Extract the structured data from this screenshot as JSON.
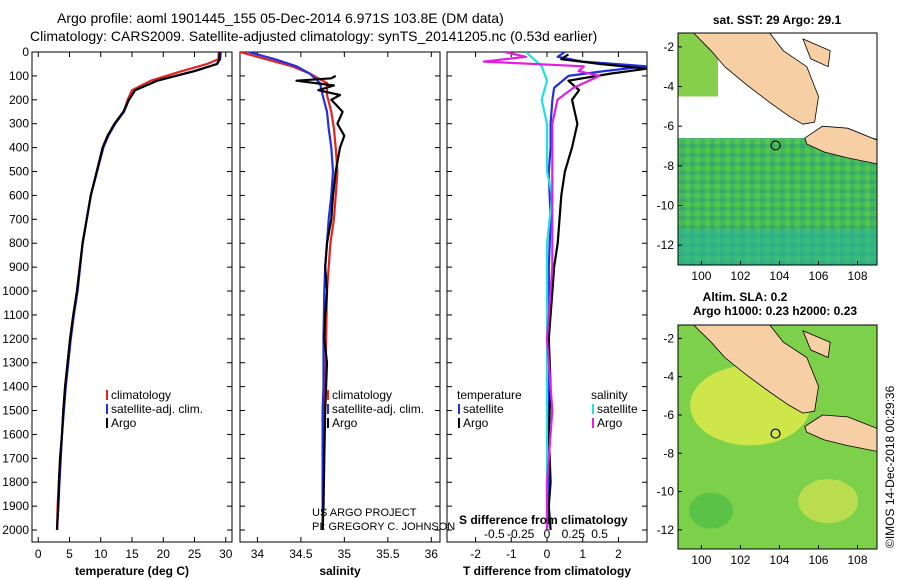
{
  "header": {
    "line1": "Argo profile: aoml 1901445_155 05-Dec-2014 6.971S 103.8E (DM data)",
    "line2": "Climatology: CARS2009. Satellite-adjusted climatology: synTS_20141205.nc (0.53d earlier)"
  },
  "sst_title": "sat. SST: 29 Argo: 29.1",
  "sla_title1": "Altim. SLA: 0.2",
  "sla_title2": "Argo h1000: 0.23 h2000: 0.23",
  "imos_stamp": "©IMOS 14-Dec-2018 00:29:36",
  "credit1": "US ARGO PROJECT",
  "credit2": "PI: GREGORY C. JOHNSON",
  "colors": {
    "climatology": "#e82020",
    "satellite": "#2030e0",
    "argo": "#000000",
    "salinity_clim": "#e020e0",
    "salinity_sat": "#20e0e0"
  },
  "chart_data": [
    {
      "type": "line",
      "panel": "temperature",
      "xlabel": "temperature (deg C)",
      "ylim": [
        2050,
        0
      ],
      "xlim": [
        -1,
        31
      ],
      "xticks": [
        0,
        5,
        10,
        15,
        20,
        25,
        30
      ],
      "yticks": [
        0,
        100,
        200,
        300,
        400,
        500,
        600,
        700,
        800,
        900,
        1000,
        1100,
        1200,
        1300,
        1400,
        1500,
        1600,
        1700,
        1800,
        1900,
        2000
      ],
      "legend": [
        "climatology",
        "satellite-adj. clim.",
        "Argo"
      ],
      "series": [
        {
          "name": "climatology",
          "color": "#e82020",
          "x": [
            28.9,
            28.8,
            27,
            23,
            18,
            15,
            14.3,
            13.7,
            12.3,
            11.2,
            10.4,
            8.4,
            7.1,
            6.2,
            5.6,
            5.1,
            4.7,
            4.3,
            4.0,
            3.8,
            3.5,
            3.3,
            3.1,
            3.0
          ],
          "y": [
            0,
            30,
            50,
            80,
            120,
            160,
            200,
            250,
            300,
            350,
            400,
            600,
            800,
            1000,
            1100,
            1200,
            1300,
            1400,
            1500,
            1600,
            1700,
            1800,
            1900,
            2000
          ]
        },
        {
          "name": "satellite-adj. clim.",
          "color": "#2030e0",
          "x": [
            29.2,
            29.1,
            28.6,
            25,
            19,
            15.5,
            14.5,
            13.7,
            12.3,
            11.2,
            10.4,
            8.4,
            7.1,
            6.3,
            5.7,
            5.2,
            4.8,
            4.4,
            4.1,
            3.8,
            3.6,
            3.4,
            3.2,
            3.0
          ],
          "y": [
            0,
            30,
            50,
            80,
            120,
            160,
            200,
            250,
            300,
            350,
            400,
            600,
            800,
            1000,
            1100,
            1200,
            1300,
            1400,
            1500,
            1600,
            1700,
            1800,
            1900,
            2000
          ]
        },
        {
          "name": "Argo",
          "color": "#000000",
          "x": [
            29,
            29,
            28.6,
            25,
            19,
            15.5,
            14.5,
            13.6,
            12.2,
            11.1,
            10.3,
            8.4,
            7.1,
            6.2,
            5.6,
            5.1,
            4.7,
            4.3,
            4.0,
            3.8,
            3.5,
            3.3,
            3.2,
            3.0
          ],
          "y": [
            0,
            30,
            50,
            80,
            120,
            160,
            200,
            250,
            300,
            350,
            400,
            600,
            800,
            1000,
            1100,
            1200,
            1300,
            1400,
            1500,
            1600,
            1700,
            1800,
            1900,
            2000
          ]
        }
      ]
    },
    {
      "type": "line",
      "panel": "salinity",
      "xlabel": "salinity",
      "ylim": [
        2050,
        0
      ],
      "xlim": [
        33.8,
        36.1
      ],
      "xticks": [
        34,
        34.5,
        35,
        35.5,
        36
      ],
      "xticklabels": [
        "34",
        "34.5",
        "35",
        "35.5",
        "36"
      ],
      "legend": [
        "climatology",
        "satellite-adj. clim.",
        "Argo"
      ],
      "series": [
        {
          "name": "climatology",
          "color": "#e82020",
          "x": [
            33.8,
            34.1,
            34.4,
            34.6,
            34.8,
            34.8,
            34.85,
            34.88,
            34.9,
            34.92,
            34.9,
            34.88,
            34.84,
            34.82,
            34.8,
            34.79,
            34.78,
            34.77,
            34.76,
            34.75,
            34.75,
            34.75
          ],
          "y": [
            0,
            30,
            60,
            90,
            130,
            180,
            250,
            320,
            400,
            500,
            600,
            700,
            800,
            900,
            1000,
            1200,
            1400,
            1500,
            1600,
            1800,
            1900,
            2000
          ]
        },
        {
          "name": "satellite-adj. clim.",
          "color": "#2030e0",
          "x": [
            33.9,
            34.2,
            34.45,
            34.6,
            34.72,
            34.75,
            34.8,
            34.82,
            34.85,
            34.87,
            34.85,
            34.82,
            34.8,
            34.78,
            34.77,
            34.76,
            34.76,
            34.75,
            34.75,
            34.75,
            34.75,
            34.75
          ],
          "y": [
            0,
            30,
            60,
            90,
            130,
            180,
            250,
            320,
            400,
            500,
            600,
            700,
            800,
            900,
            1000,
            1200,
            1400,
            1500,
            1600,
            1800,
            1900,
            2000
          ]
        },
        {
          "name": "Argo",
          "color": "#000000",
          "x": [
            34.9,
            34.85,
            34.45,
            34.88,
            34.7,
            34.95,
            34.85,
            34.98,
            34.92,
            35.0,
            34.95,
            34.9,
            34.87,
            34.85,
            34.8,
            34.78,
            34.8,
            34.78,
            34.77,
            34.8,
            34.78,
            34.77,
            34.76,
            34.75
          ],
          "y": [
            100,
            110,
            120,
            140,
            160,
            180,
            200,
            250,
            300,
            350,
            400,
            500,
            600,
            700,
            800,
            900,
            1000,
            1100,
            1200,
            1300,
            1500,
            1700,
            1900,
            2000
          ]
        }
      ]
    },
    {
      "type": "line",
      "panel": "difference",
      "xlabel": "T difference from climatology",
      "xlabel_top": "S difference from climatology",
      "ylim": [
        2050,
        0
      ],
      "xlim": [
        -2.8,
        2.8
      ],
      "xticks": [
        -2,
        -1,
        0,
        1,
        2
      ],
      "xticklabels": [
        "-2",
        "-1",
        "0",
        "1",
        "2"
      ],
      "sticks": [
        -0.5,
        -0.25,
        0,
        0.25,
        0.5
      ],
      "sticklabels": [
        "-0.5",
        "-0.25",
        "0",
        "0.25",
        "0.5"
      ],
      "legend": [
        "temperature",
        "satellite",
        "Argo",
        "salinity",
        "satellite",
        "Argo"
      ],
      "series": [
        {
          "name": "temperature satellite",
          "color": "#2030e0",
          "x": [
            0.5,
            0.3,
            1.0,
            2.8,
            1.6,
            0.6,
            0.2,
            0.15,
            0.1,
            0.1,
            0.05,
            0.1,
            0.05,
            0.05,
            0.05,
            0.05,
            0.05,
            0.05,
            0
          ],
          "y": [
            0,
            20,
            40,
            60,
            80,
            100,
            150,
            200,
            300,
            400,
            500,
            700,
            900,
            1100,
            1300,
            1500,
            1700,
            1900,
            2000
          ]
        },
        {
          "name": "temperature Argo",
          "color": "#000000",
          "x": [
            0.6,
            0.4,
            1.5,
            2.8,
            1.8,
            0.6,
            0.9,
            0.7,
            0.85,
            0.7,
            0.5,
            0.4,
            0.35,
            0.3,
            0.2,
            0.15,
            0.1,
            0.05,
            0.1,
            0.05,
            0.1,
            0.05,
            0.1
          ],
          "y": [
            10,
            30,
            50,
            70,
            90,
            120,
            160,
            200,
            300,
            400,
            500,
            600,
            700,
            800,
            900,
            1000,
            1100,
            1200,
            1400,
            1600,
            1800,
            1900,
            2000
          ]
        },
        {
          "name": "salinity satellite",
          "color": "#20e0e0",
          "x": [
            -0.2,
            -0.05,
            0,
            -0.05,
            0,
            0,
            0,
            0.05,
            0,
            0,
            0,
            0,
            0,
            0,
            0,
            0
          ],
          "y": [
            0,
            60,
            120,
            200,
            300,
            400,
            500,
            600,
            800,
            1000,
            1200,
            1400,
            1600,
            1800,
            1900,
            2000
          ]
        },
        {
          "name": "salinity Argo",
          "color": "#e020e0",
          "x": [
            -0.4,
            -0.2,
            -0.6,
            0.35,
            0.3,
            0.5,
            0.25,
            0.1,
            0.05,
            0.05,
            0.05,
            0.05,
            0,
            0.05,
            0,
            0
          ],
          "y": [
            0,
            20,
            40,
            60,
            80,
            100,
            150,
            200,
            300,
            500,
            700,
            900,
            1200,
            1500,
            1800,
            2000
          ]
        }
      ]
    },
    {
      "type": "heatmap",
      "panel": "sst_map",
      "title": "sat. SST: 29 Argo: 29.1",
      "xlim": [
        98.8,
        109
      ],
      "ylim": [
        -13,
        -1.3
      ],
      "xticks": [
        100,
        102,
        104,
        106,
        108
      ],
      "yticks": [
        -2,
        -4,
        -6,
        -8,
        -10,
        -12
      ],
      "argo_position": [
        103.8,
        -6.971
      ]
    },
    {
      "type": "heatmap",
      "panel": "sla_map",
      "title": "Altim. SLA: 0.2",
      "subtitle": "Argo h1000: 0.23 h2000: 0.23",
      "xlim": [
        98.8,
        109
      ],
      "ylim": [
        -13,
        -1.3
      ],
      "xticks": [
        100,
        102,
        104,
        106,
        108
      ],
      "yticks": [
        -2,
        -4,
        -6,
        -8,
        -10,
        -12
      ],
      "argo_position": [
        103.8,
        -6.971
      ]
    }
  ]
}
